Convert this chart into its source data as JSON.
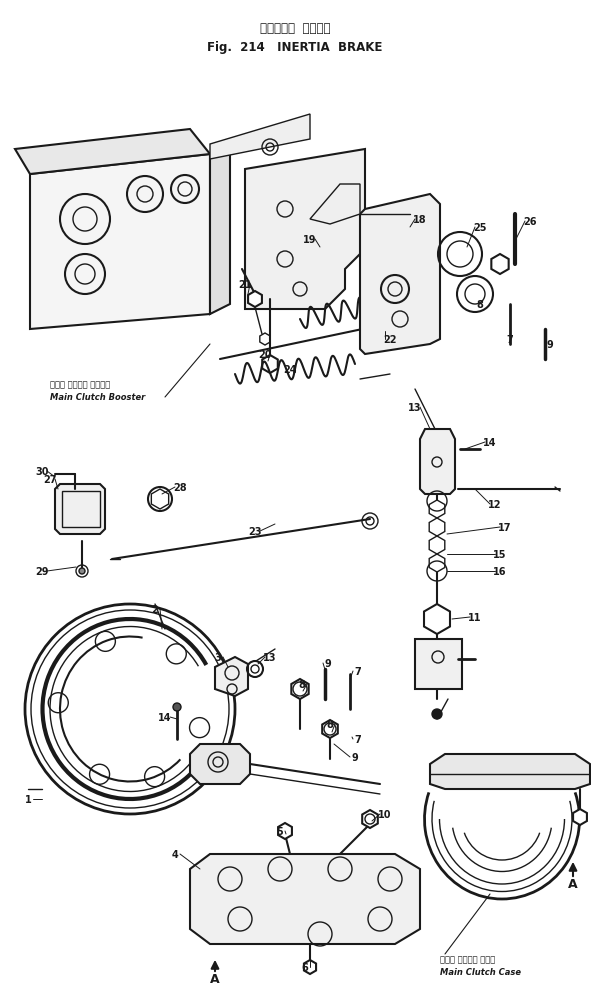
{
  "title_japanese": "イナーシャ  ブレーキ",
  "title_english": "Fig.  214   INERTIA  BRAKE",
  "bg_color": "#ffffff",
  "line_color": "#1a1a1a",
  "fig_width": 5.91,
  "fig_height": 10.04,
  "dpi": 100,
  "caption_booster_jp": "メイン クラッチ ブースタ",
  "caption_booster_en": "Main Clutch Booster",
  "caption_case_jp": "メイン クラッチ ケース",
  "caption_case_en": "Main Clutch Case"
}
